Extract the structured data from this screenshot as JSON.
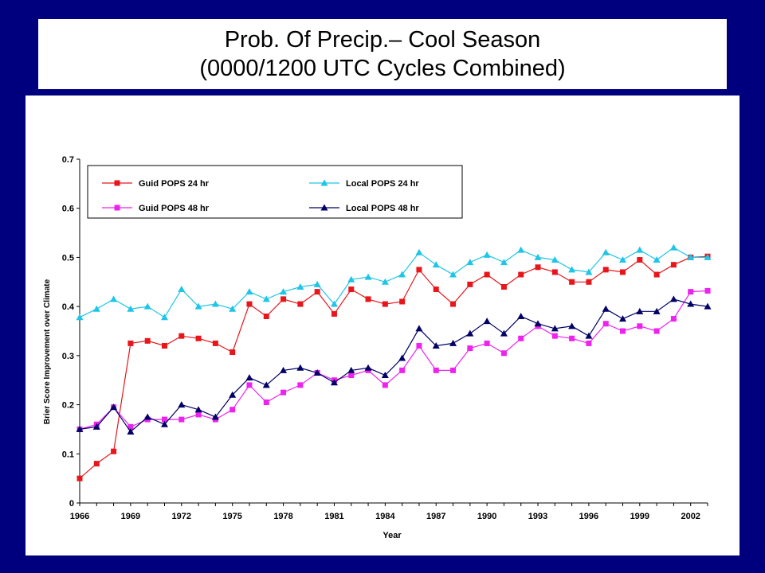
{
  "slide": {
    "title_line1": "Prob. Of Precip.– Cool Season",
    "title_line2": "(0000/1200 UTC Cycles Combined)"
  },
  "chart_data": {
    "type": "line",
    "xlabel": "Year",
    "ylabel": "Brier Score Improvement over Climate",
    "xlim": [
      1966,
      2003
    ],
    "ylim": [
      0,
      0.7
    ],
    "x_ticks": [
      "1966",
      "1969",
      "1972",
      "1975",
      "1978",
      "1981",
      "1984",
      "1987",
      "1990",
      "1993",
      "1996",
      "1999",
      "2002"
    ],
    "y_ticks": [
      "0",
      "0.1",
      "0.2",
      "0.3",
      "0.4",
      "0.5",
      "0.6",
      "0.7"
    ],
    "grid": false,
    "legend_position": "top",
    "x": [
      1966,
      1967,
      1968,
      1969,
      1970,
      1971,
      1972,
      1973,
      1974,
      1975,
      1976,
      1977,
      1978,
      1979,
      1980,
      1981,
      1982,
      1983,
      1984,
      1985,
      1986,
      1987,
      1988,
      1989,
      1990,
      1991,
      1992,
      1993,
      1994,
      1995,
      1996,
      1997,
      1998,
      1999,
      2000,
      2001,
      2002,
      2003
    ],
    "series": [
      {
        "name": "Guid POPS 24 hr",
        "color": "#e8161a",
        "marker": "square",
        "values": [
          0.05,
          0.08,
          0.105,
          0.325,
          0.33,
          0.32,
          0.34,
          0.335,
          0.325,
          0.307,
          0.405,
          0.38,
          0.415,
          0.405,
          0.43,
          0.385,
          0.435,
          0.415,
          0.405,
          0.41,
          0.475,
          0.435,
          0.405,
          0.445,
          0.465,
          0.44,
          0.465,
          0.48,
          0.47,
          0.45,
          0.45,
          0.475,
          0.47,
          0.495,
          0.465,
          0.485,
          0.5,
          0.502
        ]
      },
      {
        "name": "Local POPS 24 hr",
        "color": "#1ec5e8",
        "marker": "triangle",
        "values": [
          0.378,
          0.395,
          0.415,
          0.395,
          0.4,
          0.378,
          0.435,
          0.4,
          0.405,
          0.395,
          0.43,
          0.415,
          0.43,
          0.44,
          0.445,
          0.405,
          0.455,
          0.46,
          0.45,
          0.465,
          0.51,
          0.485,
          0.465,
          0.49,
          0.505,
          0.49,
          0.515,
          0.5,
          0.495,
          0.475,
          0.47,
          0.51,
          0.495,
          0.515,
          0.495,
          0.52,
          0.5,
          0.5
        ]
      },
      {
        "name": "Guid POPS 48 hr",
        "color": "#ee22ee",
        "marker": "square",
        "values": [
          0.15,
          0.16,
          0.195,
          0.155,
          0.17,
          0.17,
          0.17,
          0.18,
          0.17,
          0.19,
          0.24,
          0.205,
          0.225,
          0.24,
          0.265,
          0.25,
          0.26,
          0.27,
          0.24,
          0.27,
          0.32,
          0.27,
          0.27,
          0.315,
          0.325,
          0.305,
          0.335,
          0.36,
          0.34,
          0.335,
          0.325,
          0.365,
          0.35,
          0.36,
          0.35,
          0.375,
          0.43,
          0.432
        ]
      },
      {
        "name": "Local POPS 48 hr",
        "color": "#000066",
        "marker": "triangle",
        "values": [
          0.15,
          0.155,
          0.195,
          0.145,
          0.175,
          0.16,
          0.2,
          0.19,
          0.175,
          0.22,
          0.255,
          0.24,
          0.27,
          0.275,
          0.265,
          0.245,
          0.27,
          0.275,
          0.26,
          0.295,
          0.355,
          0.32,
          0.325,
          0.345,
          0.37,
          0.345,
          0.38,
          0.365,
          0.355,
          0.36,
          0.34,
          0.395,
          0.375,
          0.39,
          0.39,
          0.415,
          0.405,
          0.4
        ]
      }
    ]
  }
}
